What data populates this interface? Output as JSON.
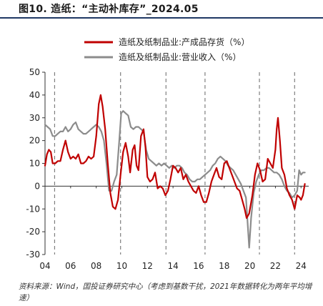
{
  "header": {
    "title": "图10. 造纸：“主动补库存”_2024.05"
  },
  "footer": {
    "source": "资料来源：Wind，国投证券研究中心（考虑到基数干扰，2021年数据转化为两年平均增速）"
  },
  "colors": {
    "series1": "#c00000",
    "series2": "#8c8c8c",
    "dashed": "#7f7f7f",
    "axis": "#333333"
  },
  "chart_data": {
    "type": "line",
    "ylim": [
      -30,
      50
    ],
    "yticks": [
      50,
      40,
      30,
      20,
      10,
      0,
      -10,
      -20,
      -30
    ],
    "xlim": [
      2004.0,
      2024.6
    ],
    "xticks": [
      {
        "v": 2004.0,
        "label": "04"
      },
      {
        "v": 2006.0,
        "label": "06"
      },
      {
        "v": 2008.0,
        "label": "08"
      },
      {
        "v": 2010.0,
        "label": "10"
      },
      {
        "v": 2012.0,
        "label": "12"
      },
      {
        "v": 2014.0,
        "label": "14"
      },
      {
        "v": 2016.0,
        "label": "16"
      },
      {
        "v": 2018.0,
        "label": "18"
      },
      {
        "v": 2020.0,
        "label": "20"
      },
      {
        "v": 2022.0,
        "label": "22"
      },
      {
        "v": 2024.0,
        "label": "24"
      }
    ],
    "dashed_lines": [
      2004.75,
      2009.9,
      2013.45,
      2016.5,
      2020.75,
      2023.5
    ],
    "series": [
      {
        "name": "造纸及纸制品业:产成品存货（%）",
        "color": "#c00000",
        "points": [
          [
            2004.0,
            9
          ],
          [
            2004.15,
            14
          ],
          [
            2004.3,
            16
          ],
          [
            2004.45,
            15
          ],
          [
            2004.6,
            10
          ],
          [
            2004.8,
            10
          ],
          [
            2005.0,
            11
          ],
          [
            2005.2,
            11
          ],
          [
            2005.4,
            16
          ],
          [
            2005.6,
            20
          ],
          [
            2005.8,
            15
          ],
          [
            2006.0,
            12
          ],
          [
            2006.2,
            13
          ],
          [
            2006.4,
            12
          ],
          [
            2006.6,
            14
          ],
          [
            2006.8,
            10
          ],
          [
            2007.0,
            10
          ],
          [
            2007.2,
            11
          ],
          [
            2007.4,
            13
          ],
          [
            2007.6,
            12
          ],
          [
            2007.8,
            13
          ],
          [
            2008.0,
            22
          ],
          [
            2008.2,
            36
          ],
          [
            2008.35,
            40
          ],
          [
            2008.5,
            35
          ],
          [
            2008.7,
            25
          ],
          [
            2008.9,
            10
          ],
          [
            2009.1,
            -3
          ],
          [
            2009.3,
            -9
          ],
          [
            2009.5,
            -10
          ],
          [
            2009.7,
            -6
          ],
          [
            2009.9,
            5
          ],
          [
            2010.1,
            15
          ],
          [
            2010.3,
            19
          ],
          [
            2010.5,
            13
          ],
          [
            2010.65,
            6
          ],
          [
            2010.85,
            16
          ],
          [
            2011.0,
            18
          ],
          [
            2011.15,
            9
          ],
          [
            2011.3,
            7
          ],
          [
            2011.5,
            22
          ],
          [
            2011.7,
            25
          ],
          [
            2011.85,
            17
          ],
          [
            2012.0,
            4
          ],
          [
            2012.2,
            2
          ],
          [
            2012.4,
            3
          ],
          [
            2012.6,
            6
          ],
          [
            2012.8,
            -1
          ],
          [
            2013.0,
            0
          ],
          [
            2013.2,
            -1
          ],
          [
            2013.4,
            -4
          ],
          [
            2013.6,
            -2
          ],
          [
            2013.8,
            3
          ],
          [
            2014.0,
            9
          ],
          [
            2014.2,
            8
          ],
          [
            2014.4,
            6
          ],
          [
            2014.6,
            8
          ],
          [
            2014.8,
            3
          ],
          [
            2015.0,
            5
          ],
          [
            2015.2,
            2
          ],
          [
            2015.4,
            0
          ],
          [
            2015.6,
            -2
          ],
          [
            2015.8,
            -3
          ],
          [
            2016.0,
            0
          ],
          [
            2016.2,
            -4
          ],
          [
            2016.4,
            -7
          ],
          [
            2016.6,
            -7
          ],
          [
            2016.8,
            -3
          ],
          [
            2017.0,
            2
          ],
          [
            2017.2,
            5
          ],
          [
            2017.4,
            8
          ],
          [
            2017.6,
            4
          ],
          [
            2017.8,
            3
          ],
          [
            2018.0,
            10
          ],
          [
            2018.2,
            11
          ],
          [
            2018.4,
            8
          ],
          [
            2018.6,
            5
          ],
          [
            2018.8,
            2
          ],
          [
            2019.0,
            -1
          ],
          [
            2019.2,
            -2
          ],
          [
            2019.4,
            -6
          ],
          [
            2019.6,
            -10
          ],
          [
            2019.75,
            -14
          ],
          [
            2019.95,
            -12
          ],
          [
            2020.2,
            -4
          ],
          [
            2020.4,
            5
          ],
          [
            2020.6,
            10
          ],
          [
            2020.8,
            7
          ],
          [
            2021.0,
            2
          ],
          [
            2021.2,
            3
          ],
          [
            2021.4,
            12
          ],
          [
            2021.6,
            10
          ],
          [
            2021.8,
            8
          ],
          [
            2022.0,
            16
          ],
          [
            2022.1,
            25
          ],
          [
            2022.2,
            30
          ],
          [
            2022.35,
            20
          ],
          [
            2022.5,
            8
          ],
          [
            2022.7,
            5
          ],
          [
            2022.9,
            -1
          ],
          [
            2023.1,
            -4
          ],
          [
            2023.3,
            -6
          ],
          [
            2023.5,
            -10
          ],
          [
            2023.7,
            -4
          ],
          [
            2023.9,
            -5
          ],
          [
            2024.0,
            -6
          ],
          [
            2024.15,
            -4
          ],
          [
            2024.3,
            1
          ]
        ]
      },
      {
        "name": "造纸及纸制品业:营业收入（%）",
        "color": "#8c8c8c",
        "points": [
          [
            2004.0,
            27
          ],
          [
            2004.2,
            26
          ],
          [
            2004.4,
            25
          ],
          [
            2004.6,
            22
          ],
          [
            2004.8,
            22
          ],
          [
            2005.0,
            23
          ],
          [
            2005.2,
            24
          ],
          [
            2005.4,
            24
          ],
          [
            2005.6,
            26
          ],
          [
            2005.8,
            24
          ],
          [
            2006.0,
            25
          ],
          [
            2006.2,
            27
          ],
          [
            2006.4,
            28
          ],
          [
            2006.6,
            25
          ],
          [
            2006.8,
            24
          ],
          [
            2007.0,
            23
          ],
          [
            2007.2,
            23
          ],
          [
            2007.4,
            24
          ],
          [
            2007.6,
            25
          ],
          [
            2007.8,
            26
          ],
          [
            2008.0,
            27
          ],
          [
            2008.2,
            26
          ],
          [
            2008.4,
            24
          ],
          [
            2008.6,
            20
          ],
          [
            2008.8,
            10
          ],
          [
            2009.0,
            -2
          ],
          [
            2009.2,
            -2
          ],
          [
            2009.4,
            2
          ],
          [
            2009.6,
            5
          ],
          [
            2009.8,
            20
          ],
          [
            2009.95,
            32
          ],
          [
            2010.1,
            33
          ],
          [
            2010.3,
            32
          ],
          [
            2010.5,
            31
          ],
          [
            2010.7,
            26
          ],
          [
            2010.9,
            25
          ],
          [
            2011.1,
            26
          ],
          [
            2011.3,
            26
          ],
          [
            2011.5,
            25
          ],
          [
            2011.7,
            24
          ],
          [
            2011.9,
            16
          ],
          [
            2012.1,
            12
          ],
          [
            2012.3,
            11
          ],
          [
            2012.5,
            10
          ],
          [
            2012.7,
            9
          ],
          [
            2012.9,
            10
          ],
          [
            2013.1,
            9
          ],
          [
            2013.3,
            10
          ],
          [
            2013.5,
            9
          ],
          [
            2013.7,
            8
          ],
          [
            2013.9,
            9
          ],
          [
            2014.1,
            8
          ],
          [
            2014.3,
            9
          ],
          [
            2014.5,
            9
          ],
          [
            2014.7,
            8
          ],
          [
            2014.9,
            6
          ],
          [
            2015.1,
            5
          ],
          [
            2015.3,
            3
          ],
          [
            2015.5,
            2
          ],
          [
            2015.7,
            2
          ],
          [
            2015.9,
            3
          ],
          [
            2016.1,
            3
          ],
          [
            2016.3,
            4
          ],
          [
            2016.5,
            5
          ],
          [
            2016.7,
            6
          ],
          [
            2016.9,
            7
          ],
          [
            2017.1,
            9
          ],
          [
            2017.3,
            10
          ],
          [
            2017.5,
            12
          ],
          [
            2017.7,
            13
          ],
          [
            2017.9,
            12
          ],
          [
            2018.1,
            11
          ],
          [
            2018.3,
            9
          ],
          [
            2018.5,
            8
          ],
          [
            2018.7,
            7
          ],
          [
            2018.9,
            5
          ],
          [
            2019.1,
            3
          ],
          [
            2019.3,
            1
          ],
          [
            2019.5,
            -2
          ],
          [
            2019.7,
            -5
          ],
          [
            2019.85,
            -18
          ],
          [
            2019.95,
            -27
          ],
          [
            2020.1,
            -14
          ],
          [
            2020.3,
            -3
          ],
          [
            2020.5,
            2
          ],
          [
            2020.7,
            5
          ],
          [
            2020.9,
            7
          ],
          [
            2021.1,
            7
          ],
          [
            2021.3,
            8
          ],
          [
            2021.5,
            8
          ],
          [
            2021.7,
            7
          ],
          [
            2021.9,
            6
          ],
          [
            2022.1,
            6
          ],
          [
            2022.3,
            5
          ],
          [
            2022.5,
            3
          ],
          [
            2022.7,
            0
          ],
          [
            2022.9,
            -2
          ],
          [
            2023.1,
            -3
          ],
          [
            2023.3,
            -5
          ],
          [
            2023.5,
            -4
          ],
          [
            2023.7,
            -2
          ],
          [
            2023.85,
            7
          ],
          [
            2024.0,
            5
          ],
          [
            2024.15,
            6
          ],
          [
            2024.3,
            6
          ]
        ]
      }
    ]
  }
}
